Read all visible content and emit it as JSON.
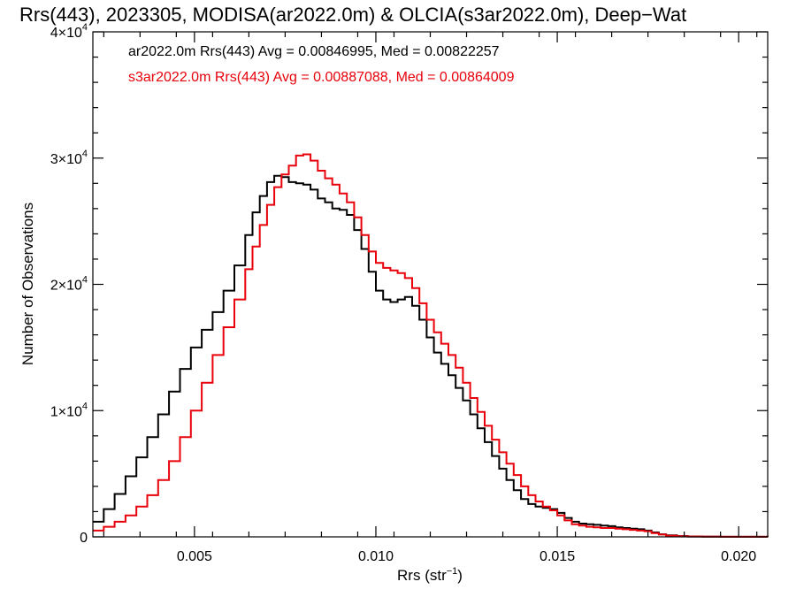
{
  "chart_data": {
    "type": "line",
    "style": "step",
    "title": "Rrs(443), 2023305, MODISA(ar2022.0m) & OLCIA(s3ar2022.0m), Deep−Wat",
    "xlabel": "Rrs (str",
    "xlabel_sup": "−1",
    "xlabel_end": ")",
    "ylabel": "Number of Observations",
    "xlim": [
      0.0022,
      0.0208
    ],
    "ylim": [
      0,
      40000
    ],
    "grid": false,
    "x_ticks": [
      {
        "value": 0.005,
        "label": "0.005"
      },
      {
        "value": 0.01,
        "label": "0.010"
      },
      {
        "value": 0.015,
        "label": "0.015"
      },
      {
        "value": 0.02,
        "label": "0.020"
      }
    ],
    "y_ticks": [
      {
        "value": 0,
        "label": "0",
        "sup": ""
      },
      {
        "value": 10000,
        "label": "1×10",
        "sup": "4"
      },
      {
        "value": 20000,
        "label": "2×10",
        "sup": "4"
      },
      {
        "value": 30000,
        "label": "3×10",
        "sup": "4"
      },
      {
        "value": 40000,
        "label": "4×10",
        "sup": "4"
      }
    ],
    "series": [
      {
        "name": "ar2022.0m",
        "color": "#000000",
        "legend": "ar2022.0m Rrs(443) Avg = 0.00846995, Med = 0.00822257",
        "points": [
          [
            0.0022,
            1200
          ],
          [
            0.0025,
            2200
          ],
          [
            0.0028,
            3400
          ],
          [
            0.0031,
            4800
          ],
          [
            0.0034,
            6300
          ],
          [
            0.0037,
            7900
          ],
          [
            0.004,
            9700
          ],
          [
            0.0043,
            11500
          ],
          [
            0.0046,
            13300
          ],
          [
            0.0049,
            15000
          ],
          [
            0.0052,
            16400
          ],
          [
            0.0055,
            17800
          ],
          [
            0.0058,
            19500
          ],
          [
            0.0061,
            21500
          ],
          [
            0.0064,
            23900
          ],
          [
            0.0066,
            25700
          ],
          [
            0.0068,
            27000
          ],
          [
            0.007,
            28100
          ],
          [
            0.0072,
            28600
          ],
          [
            0.0074,
            28500
          ],
          [
            0.0076,
            28100
          ],
          [
            0.0078,
            28000
          ],
          [
            0.008,
            27900
          ],
          [
            0.0082,
            27500
          ],
          [
            0.0084,
            26800
          ],
          [
            0.0086,
            26500
          ],
          [
            0.0088,
            26000
          ],
          [
            0.009,
            25900
          ],
          [
            0.0092,
            25500
          ],
          [
            0.0094,
            24300
          ],
          [
            0.0096,
            22800
          ],
          [
            0.0098,
            21000
          ],
          [
            0.01,
            19500
          ],
          [
            0.0102,
            18800
          ],
          [
            0.0104,
            18600
          ],
          [
            0.0106,
            18800
          ],
          [
            0.0108,
            19000
          ],
          [
            0.011,
            18300
          ],
          [
            0.0112,
            17200
          ],
          [
            0.0114,
            15800
          ],
          [
            0.0116,
            14600
          ],
          [
            0.0118,
            13700
          ],
          [
            0.012,
            12800
          ],
          [
            0.0122,
            11800
          ],
          [
            0.0124,
            10800
          ],
          [
            0.0126,
            9700
          ],
          [
            0.0128,
            8600
          ],
          [
            0.013,
            7500
          ],
          [
            0.0132,
            6400
          ],
          [
            0.0134,
            5400
          ],
          [
            0.0136,
            4500
          ],
          [
            0.0138,
            3700
          ],
          [
            0.014,
            3000
          ],
          [
            0.0142,
            2600
          ],
          [
            0.0144,
            2400
          ],
          [
            0.0146,
            2300
          ],
          [
            0.0148,
            2200
          ],
          [
            0.015,
            1900
          ],
          [
            0.0152,
            1500
          ],
          [
            0.0154,
            1200
          ],
          [
            0.0156,
            1050
          ],
          [
            0.0158,
            1000
          ],
          [
            0.016,
            950
          ],
          [
            0.0162,
            900
          ],
          [
            0.0164,
            850
          ],
          [
            0.0166,
            750
          ],
          [
            0.0168,
            700
          ],
          [
            0.017,
            650
          ],
          [
            0.0172,
            600
          ],
          [
            0.0174,
            500
          ],
          [
            0.0176,
            350
          ],
          [
            0.0178,
            200
          ],
          [
            0.018,
            120
          ],
          [
            0.0183,
            60
          ],
          [
            0.0186,
            30
          ],
          [
            0.019,
            15
          ],
          [
            0.0195,
            8
          ],
          [
            0.02,
            5
          ],
          [
            0.0208,
            2
          ]
        ]
      },
      {
        "name": "s3ar2022.0m",
        "color": "#e8000b",
        "legend": "s3ar2022.0m Rrs(443) Avg = 0.00887088, Med = 0.00864009",
        "points": [
          [
            0.0022,
            500
          ],
          [
            0.0025,
            800
          ],
          [
            0.0028,
            1200
          ],
          [
            0.0031,
            1700
          ],
          [
            0.0034,
            2400
          ],
          [
            0.0037,
            3300
          ],
          [
            0.004,
            4500
          ],
          [
            0.0043,
            6000
          ],
          [
            0.0046,
            7900
          ],
          [
            0.0049,
            10000
          ],
          [
            0.0052,
            12200
          ],
          [
            0.0055,
            14400
          ],
          [
            0.0058,
            16600
          ],
          [
            0.0061,
            18800
          ],
          [
            0.0064,
            21200
          ],
          [
            0.0066,
            23000
          ],
          [
            0.0068,
            24700
          ],
          [
            0.007,
            26300
          ],
          [
            0.0072,
            27700
          ],
          [
            0.0074,
            28700
          ],
          [
            0.0076,
            29400
          ],
          [
            0.0078,
            30200
          ],
          [
            0.008,
            30300
          ],
          [
            0.0082,
            29800
          ],
          [
            0.0084,
            29000
          ],
          [
            0.0086,
            28400
          ],
          [
            0.0088,
            27900
          ],
          [
            0.009,
            27200
          ],
          [
            0.0092,
            26500
          ],
          [
            0.0094,
            25300
          ],
          [
            0.0096,
            23900
          ],
          [
            0.0098,
            22600
          ],
          [
            0.01,
            21700
          ],
          [
            0.0102,
            21300
          ],
          [
            0.0104,
            21100
          ],
          [
            0.0106,
            20900
          ],
          [
            0.0108,
            20500
          ],
          [
            0.011,
            19700
          ],
          [
            0.0112,
            18500
          ],
          [
            0.0114,
            17200
          ],
          [
            0.0116,
            16200
          ],
          [
            0.0118,
            15300
          ],
          [
            0.012,
            14400
          ],
          [
            0.0122,
            13400
          ],
          [
            0.0124,
            12200
          ],
          [
            0.0126,
            11000
          ],
          [
            0.0128,
            9900
          ],
          [
            0.013,
            8800
          ],
          [
            0.0132,
            7700
          ],
          [
            0.0134,
            6700
          ],
          [
            0.0136,
            5800
          ],
          [
            0.0138,
            4900
          ],
          [
            0.014,
            4000
          ],
          [
            0.0142,
            3300
          ],
          [
            0.0144,
            2800
          ],
          [
            0.0146,
            2400
          ],
          [
            0.0148,
            2100
          ],
          [
            0.015,
            1700
          ],
          [
            0.0152,
            1300
          ],
          [
            0.0154,
            1000
          ],
          [
            0.0156,
            900
          ],
          [
            0.0158,
            800
          ],
          [
            0.016,
            750
          ],
          [
            0.0162,
            700
          ],
          [
            0.0164,
            700
          ],
          [
            0.0166,
            650
          ],
          [
            0.0168,
            600
          ],
          [
            0.017,
            550
          ],
          [
            0.0172,
            500
          ],
          [
            0.0174,
            450
          ],
          [
            0.0176,
            300
          ],
          [
            0.0178,
            180
          ],
          [
            0.018,
            100
          ],
          [
            0.0183,
            50
          ],
          [
            0.0186,
            25
          ],
          [
            0.019,
            12
          ],
          [
            0.0195,
            6
          ],
          [
            0.02,
            4
          ],
          [
            0.0208,
            2
          ]
        ]
      }
    ]
  }
}
